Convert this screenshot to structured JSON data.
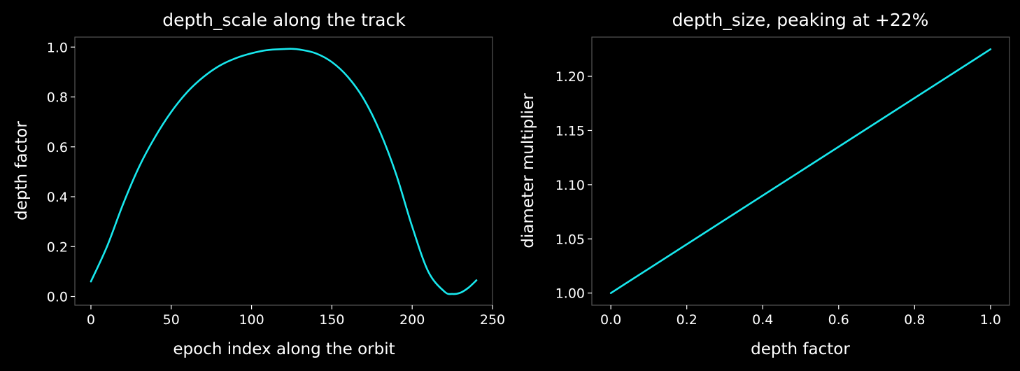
{
  "figure": {
    "background": "#000000",
    "axes_edge_color": "#555555",
    "text_color": "#ffffff",
    "line_color": "#18e8ee"
  },
  "chart_data": [
    {
      "type": "line",
      "title": "depth_scale along the track",
      "xlabel": "epoch index along the orbit",
      "ylabel": "depth factor",
      "xlim": [
        -10,
        250
      ],
      "ylim": [
        -0.035,
        1.04
      ],
      "xticks": [
        0,
        50,
        100,
        150,
        200,
        250
      ],
      "yticks": [
        0.0,
        0.2,
        0.4,
        0.6,
        0.8,
        1.0
      ],
      "xtick_labels": [
        "0",
        "50",
        "100",
        "150",
        "200",
        "250"
      ],
      "ytick_labels": [
        "0.0",
        "0.2",
        "0.4",
        "0.6",
        "0.8",
        "1.0"
      ],
      "grid": false,
      "series": [
        {
          "color": "#18e8ee",
          "x": [
            0,
            10,
            20,
            30,
            40,
            50,
            60,
            70,
            80,
            90,
            100,
            110,
            120,
            125,
            130,
            140,
            150,
            160,
            170,
            180,
            190,
            200,
            210,
            220,
            225,
            230,
            235,
            240
          ],
          "y": [
            0.06,
            0.2,
            0.37,
            0.52,
            0.64,
            0.74,
            0.82,
            0.88,
            0.925,
            0.955,
            0.975,
            0.988,
            0.992,
            0.993,
            0.99,
            0.975,
            0.94,
            0.88,
            0.79,
            0.66,
            0.49,
            0.28,
            0.1,
            0.02,
            0.01,
            0.015,
            0.035,
            0.065
          ]
        }
      ]
    },
    {
      "type": "line",
      "title": "depth_size, peaking at +22%",
      "xlabel": "depth factor",
      "ylabel": "diameter multiplier",
      "xlim": [
        -0.05,
        1.05
      ],
      "ylim": [
        0.9888,
        1.2362
      ],
      "xticks": [
        0.0,
        0.2,
        0.4,
        0.6,
        0.8,
        1.0
      ],
      "yticks": [
        1.0,
        1.05,
        1.1,
        1.15,
        1.2
      ],
      "xtick_labels": [
        "0.0",
        "0.2",
        "0.4",
        "0.6",
        "0.8",
        "1.0"
      ],
      "ytick_labels": [
        "1.00",
        "1.05",
        "1.10",
        "1.15",
        "1.20"
      ],
      "grid": false,
      "series": [
        {
          "color": "#18e8ee",
          "x": [
            0.0,
            1.0
          ],
          "y": [
            1.0,
            1.225
          ]
        }
      ]
    }
  ]
}
